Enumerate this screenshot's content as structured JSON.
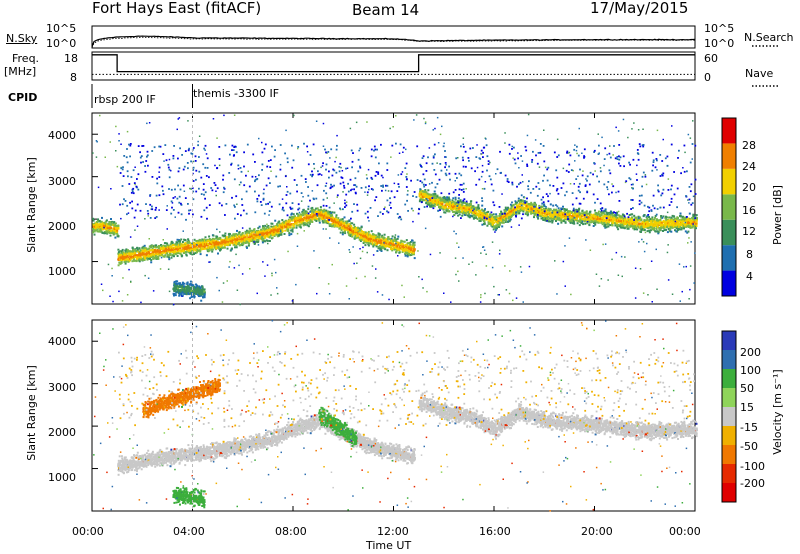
{
  "header": {
    "station": "Fort Hays East (fitACF)",
    "beam": "Beam 14",
    "date": "17/May/2015"
  },
  "labels": {
    "nsky": "N.Sky",
    "nsearch": "N.Search",
    "freq": "Freq.",
    "freq_unit": "[MHz]",
    "nave": "Nave",
    "cpid": "CPID",
    "exp1": "rbsp 200 IF",
    "exp2": "themis -3300 IF",
    "xlabel": "Time UT",
    "ylabel_power": "Slant Range [km]",
    "ylabel_vel": "Slant Range [km]",
    "power_cb_label": "Power [dB]",
    "vel_cb_label": "Velocity [m s⁻¹]"
  },
  "chart_data": [
    {
      "type": "line",
      "title": "N.Sky / N.Search",
      "y_scale": "log",
      "ylim": [
        "10^0",
        "10^5"
      ],
      "ytick_labels": [
        "10^5",
        "10^0"
      ],
      "right_tick_labels": [
        "10^5",
        "10^0"
      ],
      "x": [
        "00:00",
        "01:00",
        "02:00",
        "04:00",
        "08:00",
        "12:00",
        "13:00",
        "16:00",
        "20:00",
        "24:00"
      ],
      "series": [
        {
          "name": "N.Sky",
          "values": [
            2,
            300,
            500,
            200,
            150,
            120,
            40,
            60,
            80,
            80
          ]
        },
        {
          "name": "N.Search",
          "values": [
            1,
            150,
            250,
            120,
            100,
            90,
            30,
            40,
            60,
            60
          ]
        }
      ]
    },
    {
      "type": "line",
      "title": "Freq / Nave",
      "ylim": [
        8,
        18
      ],
      "ytick_labels": [
        "18",
        "8"
      ],
      "right_tick_labels": [
        "60",
        "0"
      ],
      "x": [
        "00:00",
        "01:00",
        "13:00",
        "24:00"
      ],
      "series": [
        {
          "name": "Freq.",
          "values": [
            17,
            11,
            17,
            17
          ]
        },
        {
          "name": "Nave",
          "values": [
            10,
            10,
            10,
            10
          ]
        }
      ]
    },
    {
      "type": "heatmap",
      "title": "Power",
      "xlim": [
        0,
        24
      ],
      "ylim": [
        0,
        4500
      ],
      "xtick_labels": [
        "00:00",
        "04:00",
        "08:00",
        "12:00",
        "16:00",
        "20:00",
        "00:00"
      ],
      "ytick_labels": [
        "1000",
        "2000",
        "3000",
        "4000"
      ],
      "colorbar_ticks": [
        "4",
        "8",
        "12",
        "16",
        "20",
        "24",
        "28"
      ],
      "colorbar_range": [
        0,
        30
      ],
      "colors": [
        "#0000e0",
        "#1f6fb0",
        "#3a8f5a",
        "#79b84a",
        "#f2d000",
        "#f07f00",
        "#e00000"
      ],
      "features": [
        {
          "name": "main echo band",
          "t": [
            1.0,
            3,
            5,
            7,
            8.2,
            9,
            10,
            11,
            12.8
          ],
          "r": [
            1100,
            1300,
            1450,
            1700,
            2000,
            2150,
            1850,
            1550,
            1300
          ],
          "peak_db": 24
        },
        {
          "name": "evening band",
          "t": [
            13.0,
            14,
            15,
            16,
            17,
            18,
            20,
            22,
            24
          ],
          "r": [
            2600,
            2350,
            2250,
            1950,
            2350,
            2150,
            2050,
            1900,
            1950
          ],
          "peak_db": 22
        },
        {
          "name": "early band",
          "t": [
            0.0,
            0.4,
            0.8,
            1.0
          ],
          "r": [
            1850,
            1850,
            1800,
            1750
          ],
          "peak_db": 22
        },
        {
          "name": "near range patch",
          "t": [
            3.2,
            3.6,
            4.0,
            4.4
          ],
          "r": [
            400,
            380,
            340,
            320
          ],
          "peak_db": 12
        }
      ]
    },
    {
      "type": "heatmap",
      "title": "Velocity",
      "xlim": [
        0,
        24
      ],
      "ylim": [
        0,
        4500
      ],
      "xtick_labels": [
        "00:00",
        "04:00",
        "08:00",
        "12:00",
        "16:00",
        "20:00",
        "00:00"
      ],
      "ytick_labels": [
        "1000",
        "2000",
        "3000",
        "4000"
      ],
      "colorbar_ticks": [
        "200",
        "100",
        "50",
        "15",
        "-15",
        "-50",
        "-100",
        "-200"
      ],
      "colorbar_range": [
        -250,
        250
      ],
      "colors": [
        "#2a3ab8",
        "#2f6fb0",
        "#3cae3c",
        "#8fd45a",
        "#c8c8c8",
        "#f0b000",
        "#f07800",
        "#e62a00",
        "#e00000"
      ],
      "features": [
        {
          "name": "ground scatter band",
          "t": [
            1.0,
            3,
            5,
            7,
            8.2,
            9,
            10,
            11,
            12.8
          ],
          "r": [
            1100,
            1300,
            1450,
            1700,
            2000,
            2150,
            1850,
            1550,
            1300
          ],
          "velocity": 0
        },
        {
          "name": "evening ground scatter",
          "t": [
            13.0,
            14,
            15,
            16,
            17,
            18,
            20,
            22,
            24
          ],
          "r": [
            2600,
            2350,
            2250,
            1950,
            2350,
            2150,
            2050,
            1900,
            1950
          ],
          "velocity": 0
        },
        {
          "name": "westward flow streak",
          "t": [
            2.0,
            3,
            4,
            5
          ],
          "r": [
            2400,
            2600,
            2800,
            3000
          ],
          "velocity": -60
        },
        {
          "name": "positive flow region",
          "t": [
            9.0,
            9.5,
            10,
            10.5
          ],
          "r": [
            2300,
            2100,
            1900,
            1700
          ],
          "velocity": 50
        },
        {
          "name": "near range positive",
          "t": [
            3.2,
            3.6,
            4.0,
            4.4
          ],
          "r": [
            400,
            380,
            340,
            320
          ],
          "velocity": 50
        }
      ]
    }
  ]
}
